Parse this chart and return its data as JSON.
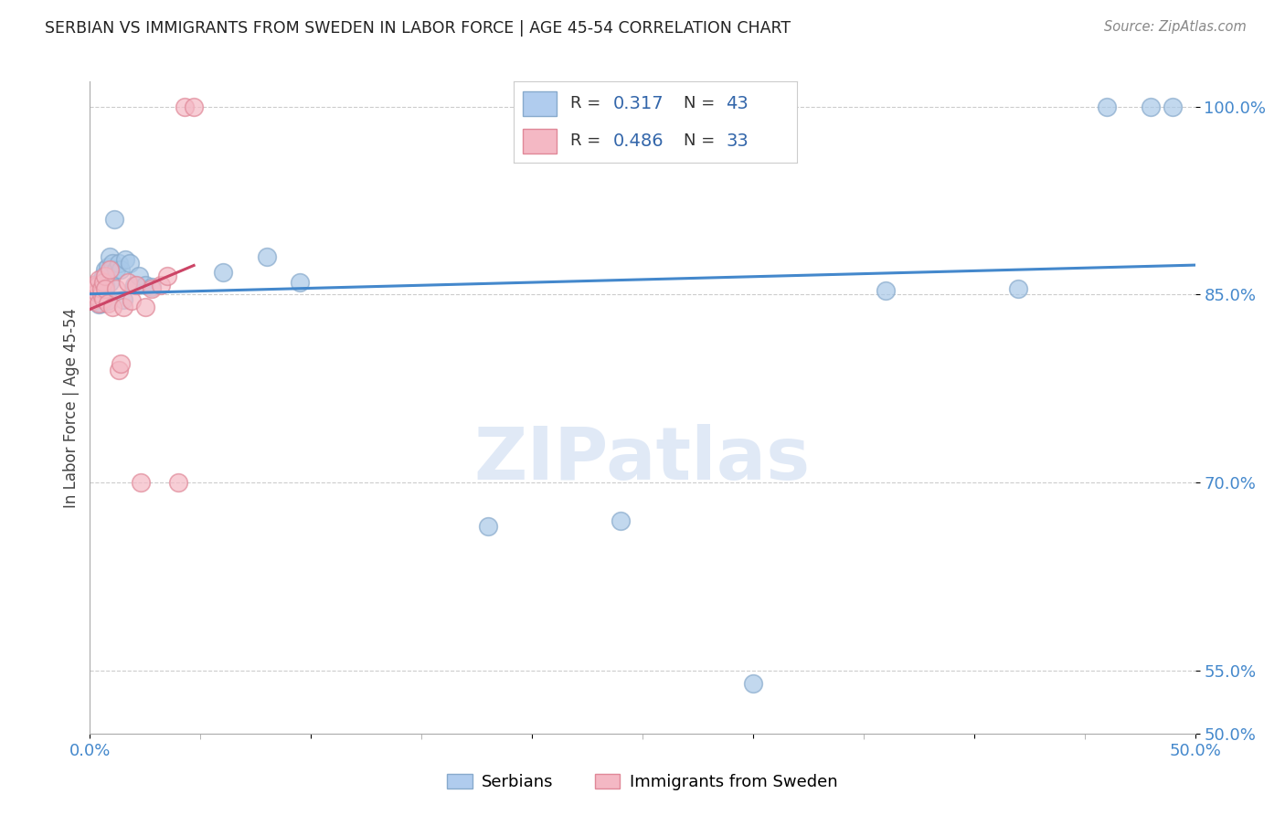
{
  "title": "SERBIAN VS IMMIGRANTS FROM SWEDEN IN LABOR FORCE | AGE 45-54 CORRELATION CHART",
  "source": "Source: ZipAtlas.com",
  "ylabel": "In Labor Force | Age 45-54",
  "xlim": [
    0.0,
    0.5
  ],
  "ylim": [
    0.5,
    1.02
  ],
  "grid_color": "#cccccc",
  "background_color": "#ffffff",
  "series_blue": {
    "label": "Serbians",
    "color_face": "#a8c8e8",
    "color_edge": "#88aacc",
    "R": "0.317",
    "N": "43",
    "x": [
      0.001,
      0.002,
      0.002,
      0.003,
      0.003,
      0.003,
      0.004,
      0.004,
      0.004,
      0.005,
      0.005,
      0.005,
      0.006,
      0.006,
      0.007,
      0.007,
      0.008,
      0.008,
      0.009,
      0.009,
      0.01,
      0.011,
      0.012,
      0.013,
      0.014,
      0.015,
      0.016,
      0.018,
      0.02,
      0.022,
      0.025,
      0.028,
      0.06,
      0.08,
      0.095,
      0.18,
      0.24,
      0.3,
      0.36,
      0.42,
      0.46,
      0.48,
      0.49
    ],
    "y": [
      0.85,
      0.855,
      0.848,
      0.852,
      0.845,
      0.857,
      0.86,
      0.842,
      0.853,
      0.847,
      0.855,
      0.843,
      0.865,
      0.85,
      0.87,
      0.858,
      0.872,
      0.845,
      0.88,
      0.86,
      0.875,
      0.91,
      0.87,
      0.875,
      0.87,
      0.846,
      0.878,
      0.875,
      0.858,
      0.865,
      0.858,
      0.856,
      0.868,
      0.88,
      0.86,
      0.665,
      0.67,
      0.54,
      0.853,
      0.855,
      1.0,
      1.0,
      1.0
    ]
  },
  "series_pink": {
    "label": "Immigrants from Sweden",
    "color_face": "#f4b8c4",
    "color_edge": "#e08898",
    "R": "0.486",
    "N": "33",
    "x": [
      0.001,
      0.001,
      0.002,
      0.002,
      0.003,
      0.003,
      0.003,
      0.004,
      0.004,
      0.005,
      0.005,
      0.006,
      0.006,
      0.007,
      0.007,
      0.008,
      0.009,
      0.01,
      0.012,
      0.013,
      0.014,
      0.015,
      0.017,
      0.019,
      0.021,
      0.023,
      0.025,
      0.028,
      0.032,
      0.035,
      0.04,
      0.043,
      0.047
    ],
    "y": [
      0.855,
      0.845,
      0.85,
      0.858,
      0.848,
      0.852,
      0.857,
      0.843,
      0.862,
      0.85,
      0.855,
      0.847,
      0.86,
      0.865,
      0.855,
      0.843,
      0.87,
      0.84,
      0.855,
      0.79,
      0.795,
      0.84,
      0.86,
      0.845,
      0.858,
      0.7,
      0.84,
      0.855,
      0.858,
      0.865,
      0.7,
      1.0,
      1.0
    ]
  },
  "legend_R_color": "#3366aa",
  "legend_N_color": "#3366aa",
  "legend_text_color": "#333333",
  "axis_tick_color": "#4488cc",
  "title_color": "#222222",
  "source_color": "#888888",
  "watermark_text": "ZIPatlas",
  "watermark_color": "#c8d8f0"
}
